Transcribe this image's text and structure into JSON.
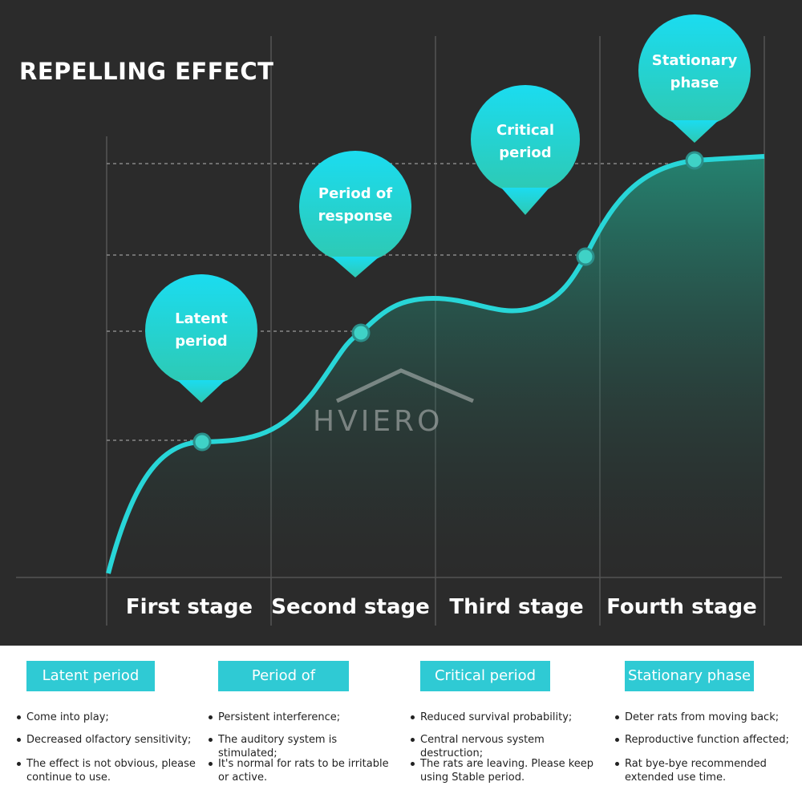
{
  "title": "REPELLING EFFECT",
  "watermark": "HVIERO",
  "bubbles": [
    "Latent period",
    "Period of response",
    "Critical period",
    "Stationary phase"
  ],
  "stages": [
    "First stage",
    "Second stage",
    "Third stage",
    "Fourth stage"
  ],
  "cards": [
    {
      "heading": "Latent period",
      "items": [
        "Come into play;",
        "Decreased olfactory sensitivity;",
        "The effect is not obvious, please continue to use."
      ]
    },
    {
      "heading": "Period of response",
      "items": [
        "Persistent interference;",
        "The auditory system is stimulated;",
        "It's normal for rats to be irritable or active."
      ]
    },
    {
      "heading": "Critical period",
      "items": [
        "Reduced survival probability;",
        "Central nervous system destruction;",
        "The rats are leaving. Please keep using Stable period."
      ]
    },
    {
      "heading": "Stationary phase",
      "items": [
        "Deter rats from moving back;",
        "Reproductive function affected;",
        "Rat bye-bye recommended extended use time."
      ]
    }
  ]
}
